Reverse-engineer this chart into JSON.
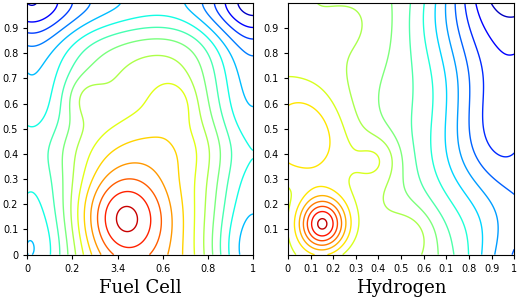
{
  "title_left": "Fuel Cell",
  "title_right": "Hydrogen",
  "figsize": [
    5.2,
    3.0
  ],
  "dpi": 100,
  "font_size": 13,
  "title_font": "serif",
  "n_levels": 20,
  "linewidth": 1.0
}
